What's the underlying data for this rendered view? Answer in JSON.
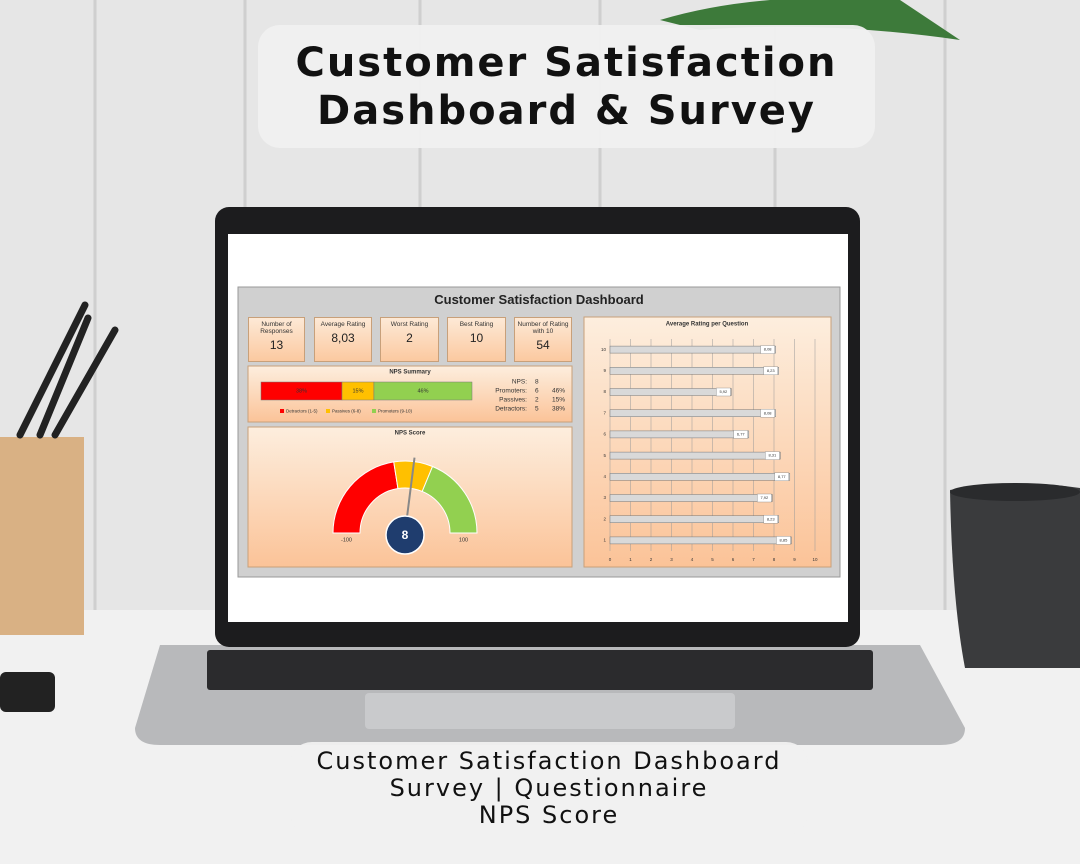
{
  "header": {
    "title_lines": [
      "Customer Satisfaction",
      "Dashboard & Survey"
    ]
  },
  "dashboard": {
    "title": "Customer Satisfaction Dashboard",
    "kpis": [
      {
        "label": "Number of Responses",
        "value": 13
      },
      {
        "label": "Average Rating",
        "value": 8.03,
        "value_label": "8,03"
      },
      {
        "label": "Worst Rating",
        "value": 2
      },
      {
        "label": "Best Rating",
        "value": 10
      },
      {
        "label": "Number of Rating with 10",
        "value": 54
      }
    ],
    "nps_rows": [
      [
        "NPS:",
        "8"
      ],
      [
        "Promoters:",
        "6",
        "46%"
      ],
      [
        "Passives:",
        "2",
        "15%"
      ],
      [
        "Detractors:",
        "5",
        "38%"
      ]
    ]
  },
  "chart_data": [
    {
      "type": "stacked-bar",
      "title": "NPS Summary",
      "series": [
        {
          "name": "Detractors (1-5)",
          "color": "#ff0000",
          "values": [
            38
          ],
          "value_labels": [
            "38%"
          ]
        },
        {
          "name": "Passives (6-8)",
          "color": "#ffc000",
          "values": [
            15
          ],
          "value_labels": [
            "15%"
          ]
        },
        {
          "name": "Promoters (9-10)",
          "color": "#92d050",
          "values": [
            46
          ],
          "value_labels": [
            "46%"
          ]
        }
      ]
    },
    {
      "type": "gauge",
      "title": "NPS Score",
      "value": 8,
      "ylim": [
        -100,
        100
      ],
      "yticks": [
        -100,
        100
      ],
      "bands": [
        {
          "from": -100,
          "to": -10,
          "color": "#ff0000"
        },
        {
          "from": -10,
          "to": 25,
          "color": "#ffc000"
        },
        {
          "from": 25,
          "to": 100,
          "color": "#92d050"
        }
      ]
    },
    {
      "type": "hbar",
      "title": "Average Rating per Question",
      "color": "#d9d9d9",
      "categories": [
        "10",
        "9",
        "8",
        "7",
        "6",
        "5",
        "4",
        "3",
        "2",
        "1"
      ],
      "values": [
        8.08,
        8.23,
        5.92,
        8.08,
        6.77,
        8.31,
        8.77,
        7.92,
        8.23,
        8.85
      ],
      "value_labels": [
        "8,08",
        "8,23",
        "5,92",
        "8,08",
        "6,77",
        "8,31",
        "8,77",
        "7,92",
        "8,23",
        "8,85"
      ],
      "xlim": [
        0,
        10
      ],
      "xticks": [
        0,
        1,
        2,
        3,
        4,
        5,
        6,
        7,
        8,
        9,
        10
      ],
      "grid": true
    }
  ],
  "footer": {
    "lines": [
      "Customer Satisfaction Dashboard",
      "Survey | Questionnaire",
      "NPS Score"
    ]
  }
}
